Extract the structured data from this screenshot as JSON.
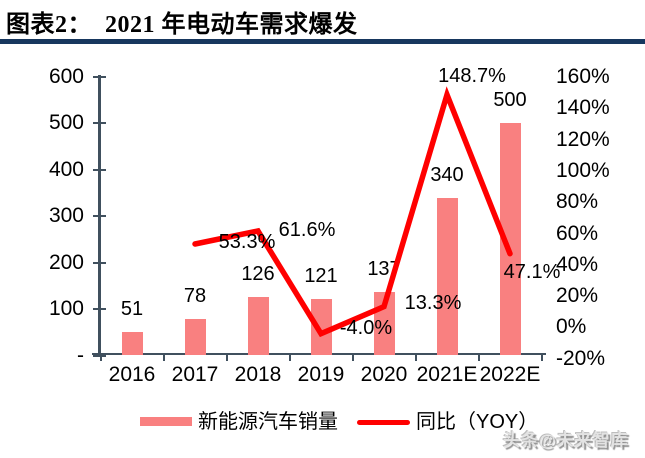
{
  "header": {
    "title": "图表2：  2021 年电动车需求爆发"
  },
  "chart_data": {
    "type": "combo",
    "title": "2021 年电动车需求爆发",
    "categories": [
      "2016",
      "2017",
      "2018",
      "2019",
      "2020",
      "2021E",
      "2022E"
    ],
    "series": [
      {
        "name": "新能源汽车销量",
        "type": "bar",
        "axis": "left",
        "values": [
          51,
          78,
          126,
          121,
          137,
          340,
          500
        ],
        "labels": [
          "51",
          "78",
          "126",
          "121",
          "137",
          "340",
          "500"
        ],
        "color": "#F98080"
      },
      {
        "name": "同比（YOY）",
        "type": "line",
        "axis": "right",
        "values": [
          null,
          53.3,
          61.6,
          -4.0,
          13.3,
          148.7,
          47.1
        ],
        "labels": [
          null,
          "53.3%",
          "61.6%",
          "-4.0%",
          "13.3%",
          "148.7%",
          "47.1%"
        ],
        "label_offsets": [
          null,
          [
            52,
            -2
          ],
          [
            49,
            -1
          ],
          [
            45,
            -6
          ],
          [
            49,
            -4
          ],
          [
            25,
            -19
          ],
          [
            22,
            18
          ]
        ],
        "color": "#FF0000"
      }
    ],
    "left_axis": {
      "ticks": [
        "600",
        "500",
        "400",
        "300",
        "200",
        "100",
        "-"
      ],
      "values": [
        600,
        500,
        400,
        300,
        200,
        100,
        0
      ],
      "range": [
        0,
        600
      ]
    },
    "right_axis": {
      "ticks": [
        "160%",
        "140%",
        "120%",
        "100%",
        "80%",
        "60%",
        "40%",
        "20%",
        "0%",
        "-20%"
      ],
      "values": [
        160,
        140,
        120,
        100,
        80,
        60,
        40,
        20,
        0,
        -20
      ],
      "range": [
        -20,
        160
      ]
    },
    "grid": false,
    "legend_position": "bottom"
  },
  "colors": {
    "bar": "#F98080",
    "line": "#FF0000",
    "axis": "#40505E",
    "title_rule": "#17375E"
  },
  "watermark": "头条@未来智库"
}
